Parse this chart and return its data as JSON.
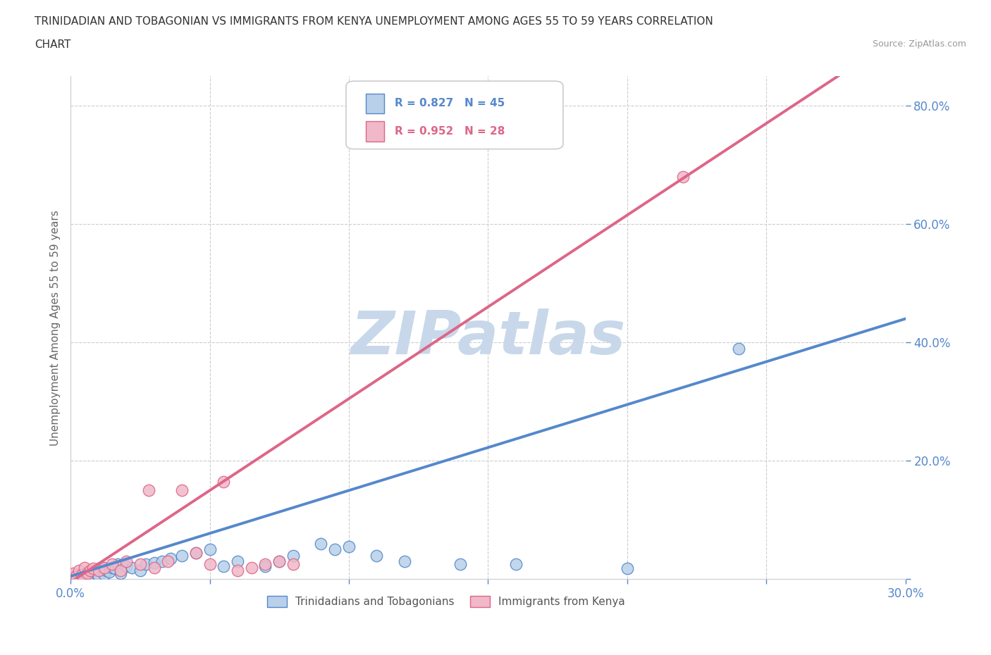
{
  "title_line1": "TRINIDADIAN AND TOBAGONIAN VS IMMIGRANTS FROM KENYA UNEMPLOYMENT AMONG AGES 55 TO 59 YEARS CORRELATION",
  "title_line2": "CHART",
  "source_text": "Source: ZipAtlas.com",
  "ylabel": "Unemployment Among Ages 55 to 59 years",
  "xlim": [
    0.0,
    0.3
  ],
  "ylim": [
    0.0,
    0.85
  ],
  "x_ticks": [
    0.0,
    0.05,
    0.1,
    0.15,
    0.2,
    0.25,
    0.3
  ],
  "y_ticks": [
    0.0,
    0.2,
    0.4,
    0.6,
    0.8
  ],
  "series1_color": "#b8d0e8",
  "series1_edge_color": "#5588cc",
  "series2_color": "#f0b8c8",
  "series2_edge_color": "#dd6688",
  "trendline1_color": "#5588cc",
  "trendline2_color": "#dd6688",
  "trendline_dashed_color": "#bbbbbb",
  "R1": 0.827,
  "N1": 45,
  "R2": 0.952,
  "N2": 28,
  "legend1_label": "Trinidadians and Tobagonians",
  "legend2_label": "Immigrants from Kenya",
  "legend_R1_text": "R = 0.827   N = 45",
  "legend_R2_text": "R = 0.952   N = 28",
  "watermark_text": "ZIPatlas",
  "watermark_color": "#c8d8ea",
  "background_color": "#ffffff",
  "axis_color": "#5588cc",
  "series1_x": [
    0.0,
    0.001,
    0.002,
    0.003,
    0.004,
    0.005,
    0.005,
    0.006,
    0.007,
    0.008,
    0.009,
    0.01,
    0.01,
    0.011,
    0.012,
    0.013,
    0.014,
    0.015,
    0.016,
    0.017,
    0.018,
    0.02,
    0.022,
    0.025,
    0.027,
    0.03,
    0.033,
    0.036,
    0.04,
    0.045,
    0.05,
    0.055,
    0.06,
    0.07,
    0.075,
    0.08,
    0.09,
    0.095,
    0.1,
    0.11,
    0.12,
    0.14,
    0.16,
    0.2,
    0.24
  ],
  "series1_y": [
    0.0,
    0.005,
    0.002,
    0.008,
    0.003,
    0.01,
    0.005,
    0.012,
    0.008,
    0.015,
    0.01,
    0.018,
    0.005,
    0.02,
    0.008,
    0.015,
    0.012,
    0.02,
    0.018,
    0.025,
    0.01,
    0.022,
    0.02,
    0.015,
    0.025,
    0.028,
    0.03,
    0.035,
    0.04,
    0.045,
    0.05,
    0.022,
    0.03,
    0.022,
    0.03,
    0.04,
    0.06,
    0.05,
    0.055,
    0.04,
    0.03,
    0.025,
    0.025,
    0.018,
    0.39
  ],
  "series2_x": [
    0.0,
    0.001,
    0.002,
    0.003,
    0.004,
    0.005,
    0.006,
    0.007,
    0.008,
    0.01,
    0.012,
    0.015,
    0.018,
    0.02,
    0.025,
    0.028,
    0.03,
    0.035,
    0.04,
    0.045,
    0.05,
    0.055,
    0.06,
    0.065,
    0.07,
    0.075,
    0.08,
    0.22
  ],
  "series2_y": [
    0.005,
    0.01,
    0.005,
    0.015,
    0.008,
    0.02,
    0.01,
    0.015,
    0.018,
    0.015,
    0.02,
    0.025,
    0.015,
    0.03,
    0.025,
    0.15,
    0.02,
    0.03,
    0.15,
    0.045,
    0.025,
    0.165,
    0.015,
    0.02,
    0.025,
    0.03,
    0.025,
    0.68
  ],
  "trendline1_slope": 1.45,
  "trendline1_intercept": 0.005,
  "trendline2_slope": 3.1,
  "trendline2_intercept": -0.005
}
